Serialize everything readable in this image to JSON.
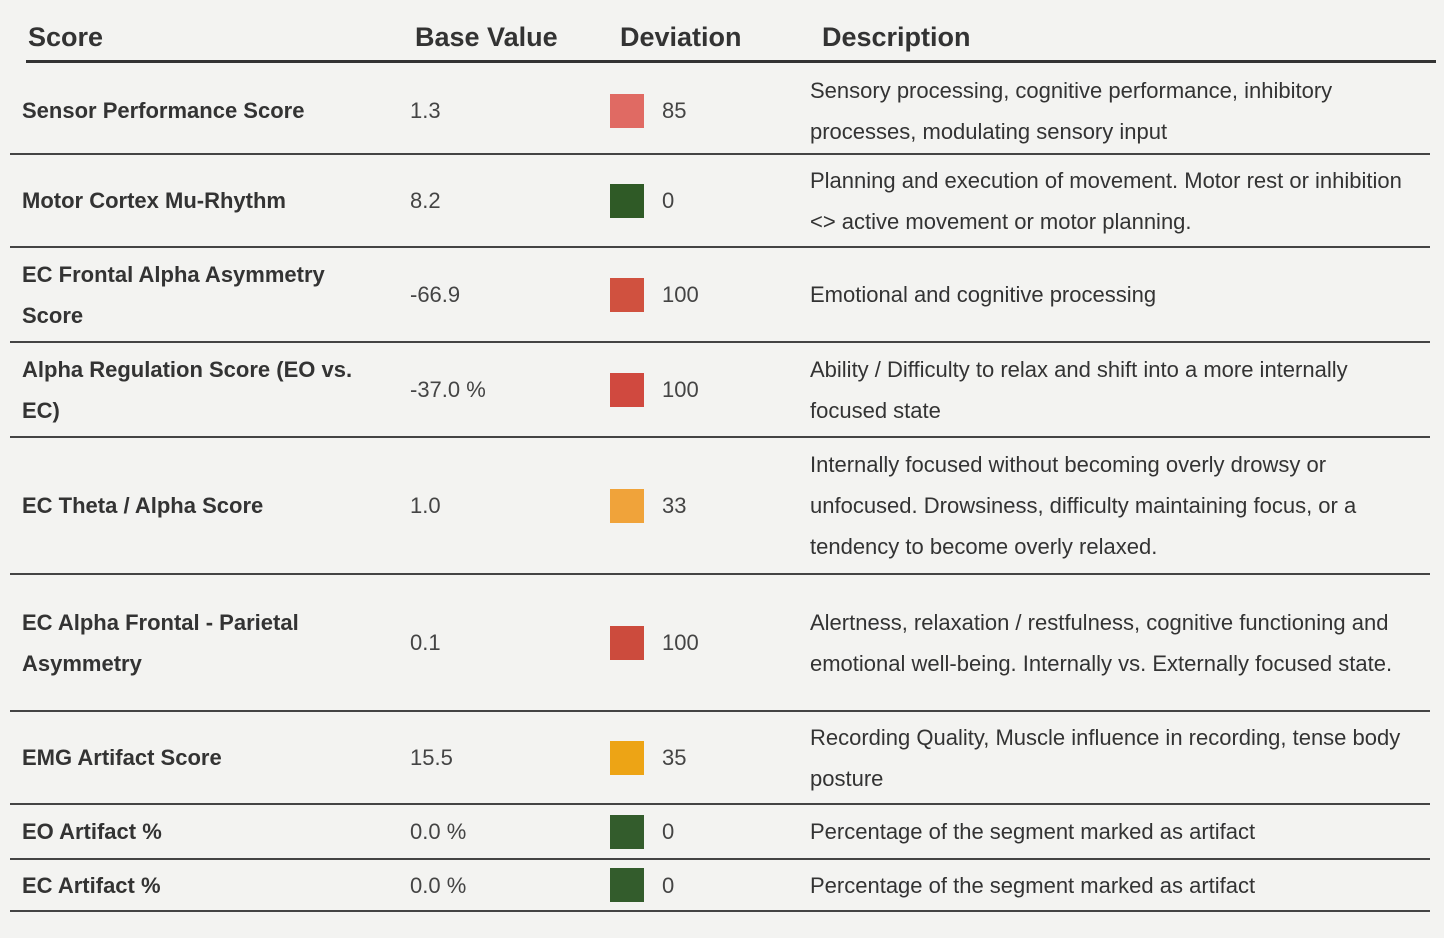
{
  "table": {
    "header": [
      "Score",
      "Base Value",
      "Deviation",
      "Description"
    ],
    "rows": [
      {
        "score": "Sensor Performance Score",
        "base_value": "1.3",
        "deviation": 85,
        "color": "#e06a63",
        "description": "Sensory processing, cognitive performance, inhibitory processes, modulating sensory input"
      },
      {
        "score": "Motor Cortex Mu-Rhythm",
        "base_value": "8.2",
        "deviation": 0,
        "color": "#2f5a26",
        "description": "Planning and execution of movement. Motor rest or inhibition <> active movement or motor planning."
      },
      {
        "score": "EC Frontal Alpha Asymmetry Score",
        "base_value": "-66.9",
        "deviation": 100,
        "color": "#d0513f",
        "description": "Emotional and cognitive processing"
      },
      {
        "score": "Alpha Regulation Score (EO vs. EC)",
        "base_value": "-37.0 %",
        "deviation": 100,
        "color": "#d0493f",
        "description": "Ability / Difficulty to relax and shift into a more internally focused state"
      },
      {
        "score": "EC Theta / Alpha Score",
        "base_value": "1.0",
        "deviation": 33,
        "color": "#f0a33a",
        "description": "Internally focused without becoming overly drowsy or unfocused. Drowsiness, difficulty maintaining focus, or a tendency to become overly relaxed."
      },
      {
        "score": "EC Alpha Frontal - Parietal Asymmetry",
        "base_value": "0.1",
        "deviation": 100,
        "color": "#cc4b3d",
        "description": "Alertness, relaxation / restfulness, cognitive functioning and emotional well-being. Internally vs. Externally focused state."
      },
      {
        "score": "EMG Artifact Score",
        "base_value": "15.5",
        "deviation": 35,
        "color": "#eda415",
        "description": "Recording Quality, Muscle influence in recording, tense body posture"
      },
      {
        "score": "EO Artifact %",
        "base_value": "0.0 %",
        "deviation": 0,
        "color": "#335c2c",
        "description": "Percentage of the segment marked as artifact"
      },
      {
        "score": "EC Artifact %",
        "base_value": "0.0 %",
        "deviation": 0,
        "color": "#335c2c",
        "description": "Percentage of the segment marked as artifact"
      }
    ]
  }
}
